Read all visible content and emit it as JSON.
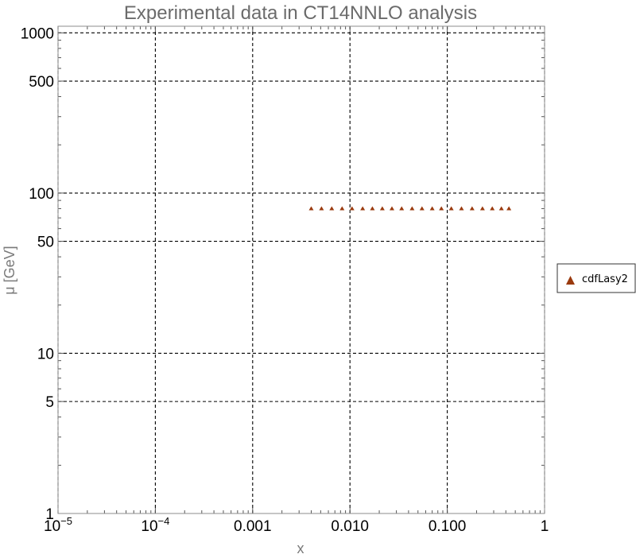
{
  "chart_data": {
    "type": "scatter",
    "title": "Experimental data in CT14NNLO analysis",
    "xlabel": "x",
    "ylabel": "μ [GeV]",
    "x_scale": "log",
    "y_scale": "log",
    "xlim": [
      1e-05,
      1
    ],
    "ylim": [
      1,
      1100
    ],
    "grid": true,
    "legend_position": "right",
    "colors": {
      "marker": "#9a3a0e",
      "frame": "#8c8c8c",
      "grid": "#000000",
      "title": "#6b6b6b"
    },
    "x_ticks": [
      {
        "value": 1e-05,
        "label": "10",
        "sup": "−5"
      },
      {
        "value": 0.0001,
        "label": "10",
        "sup": "−4"
      },
      {
        "value": 0.001,
        "label": "0.001",
        "sup": ""
      },
      {
        "value": 0.01,
        "label": "0.010",
        "sup": ""
      },
      {
        "value": 0.1,
        "label": "0.100",
        "sup": ""
      },
      {
        "value": 1,
        "label": "1",
        "sup": ""
      }
    ],
    "y_ticks": [
      {
        "value": 1,
        "label": "1"
      },
      {
        "value": 5,
        "label": "5"
      },
      {
        "value": 10,
        "label": "10"
      },
      {
        "value": 50,
        "label": "50"
      },
      {
        "value": 100,
        "label": "100"
      },
      {
        "value": 500,
        "label": "500"
      },
      {
        "value": 1000,
        "label": "1000"
      }
    ],
    "series": [
      {
        "name": "cdfLasy2",
        "marker": "triangle",
        "x": [
          0.004,
          0.0051,
          0.0065,
          0.0083,
          0.0105,
          0.0135,
          0.017,
          0.0215,
          0.027,
          0.034,
          0.0435,
          0.055,
          0.07,
          0.087,
          0.11,
          0.14,
          0.18,
          0.23,
          0.29,
          0.36,
          0.43
        ],
        "y": [
          80.4,
          80.4,
          80.4,
          80.4,
          80.4,
          80.4,
          80.4,
          80.4,
          80.4,
          80.4,
          80.4,
          80.4,
          80.4,
          80.4,
          80.4,
          80.4,
          80.4,
          80.4,
          80.4,
          80.4,
          80.4
        ]
      }
    ]
  }
}
